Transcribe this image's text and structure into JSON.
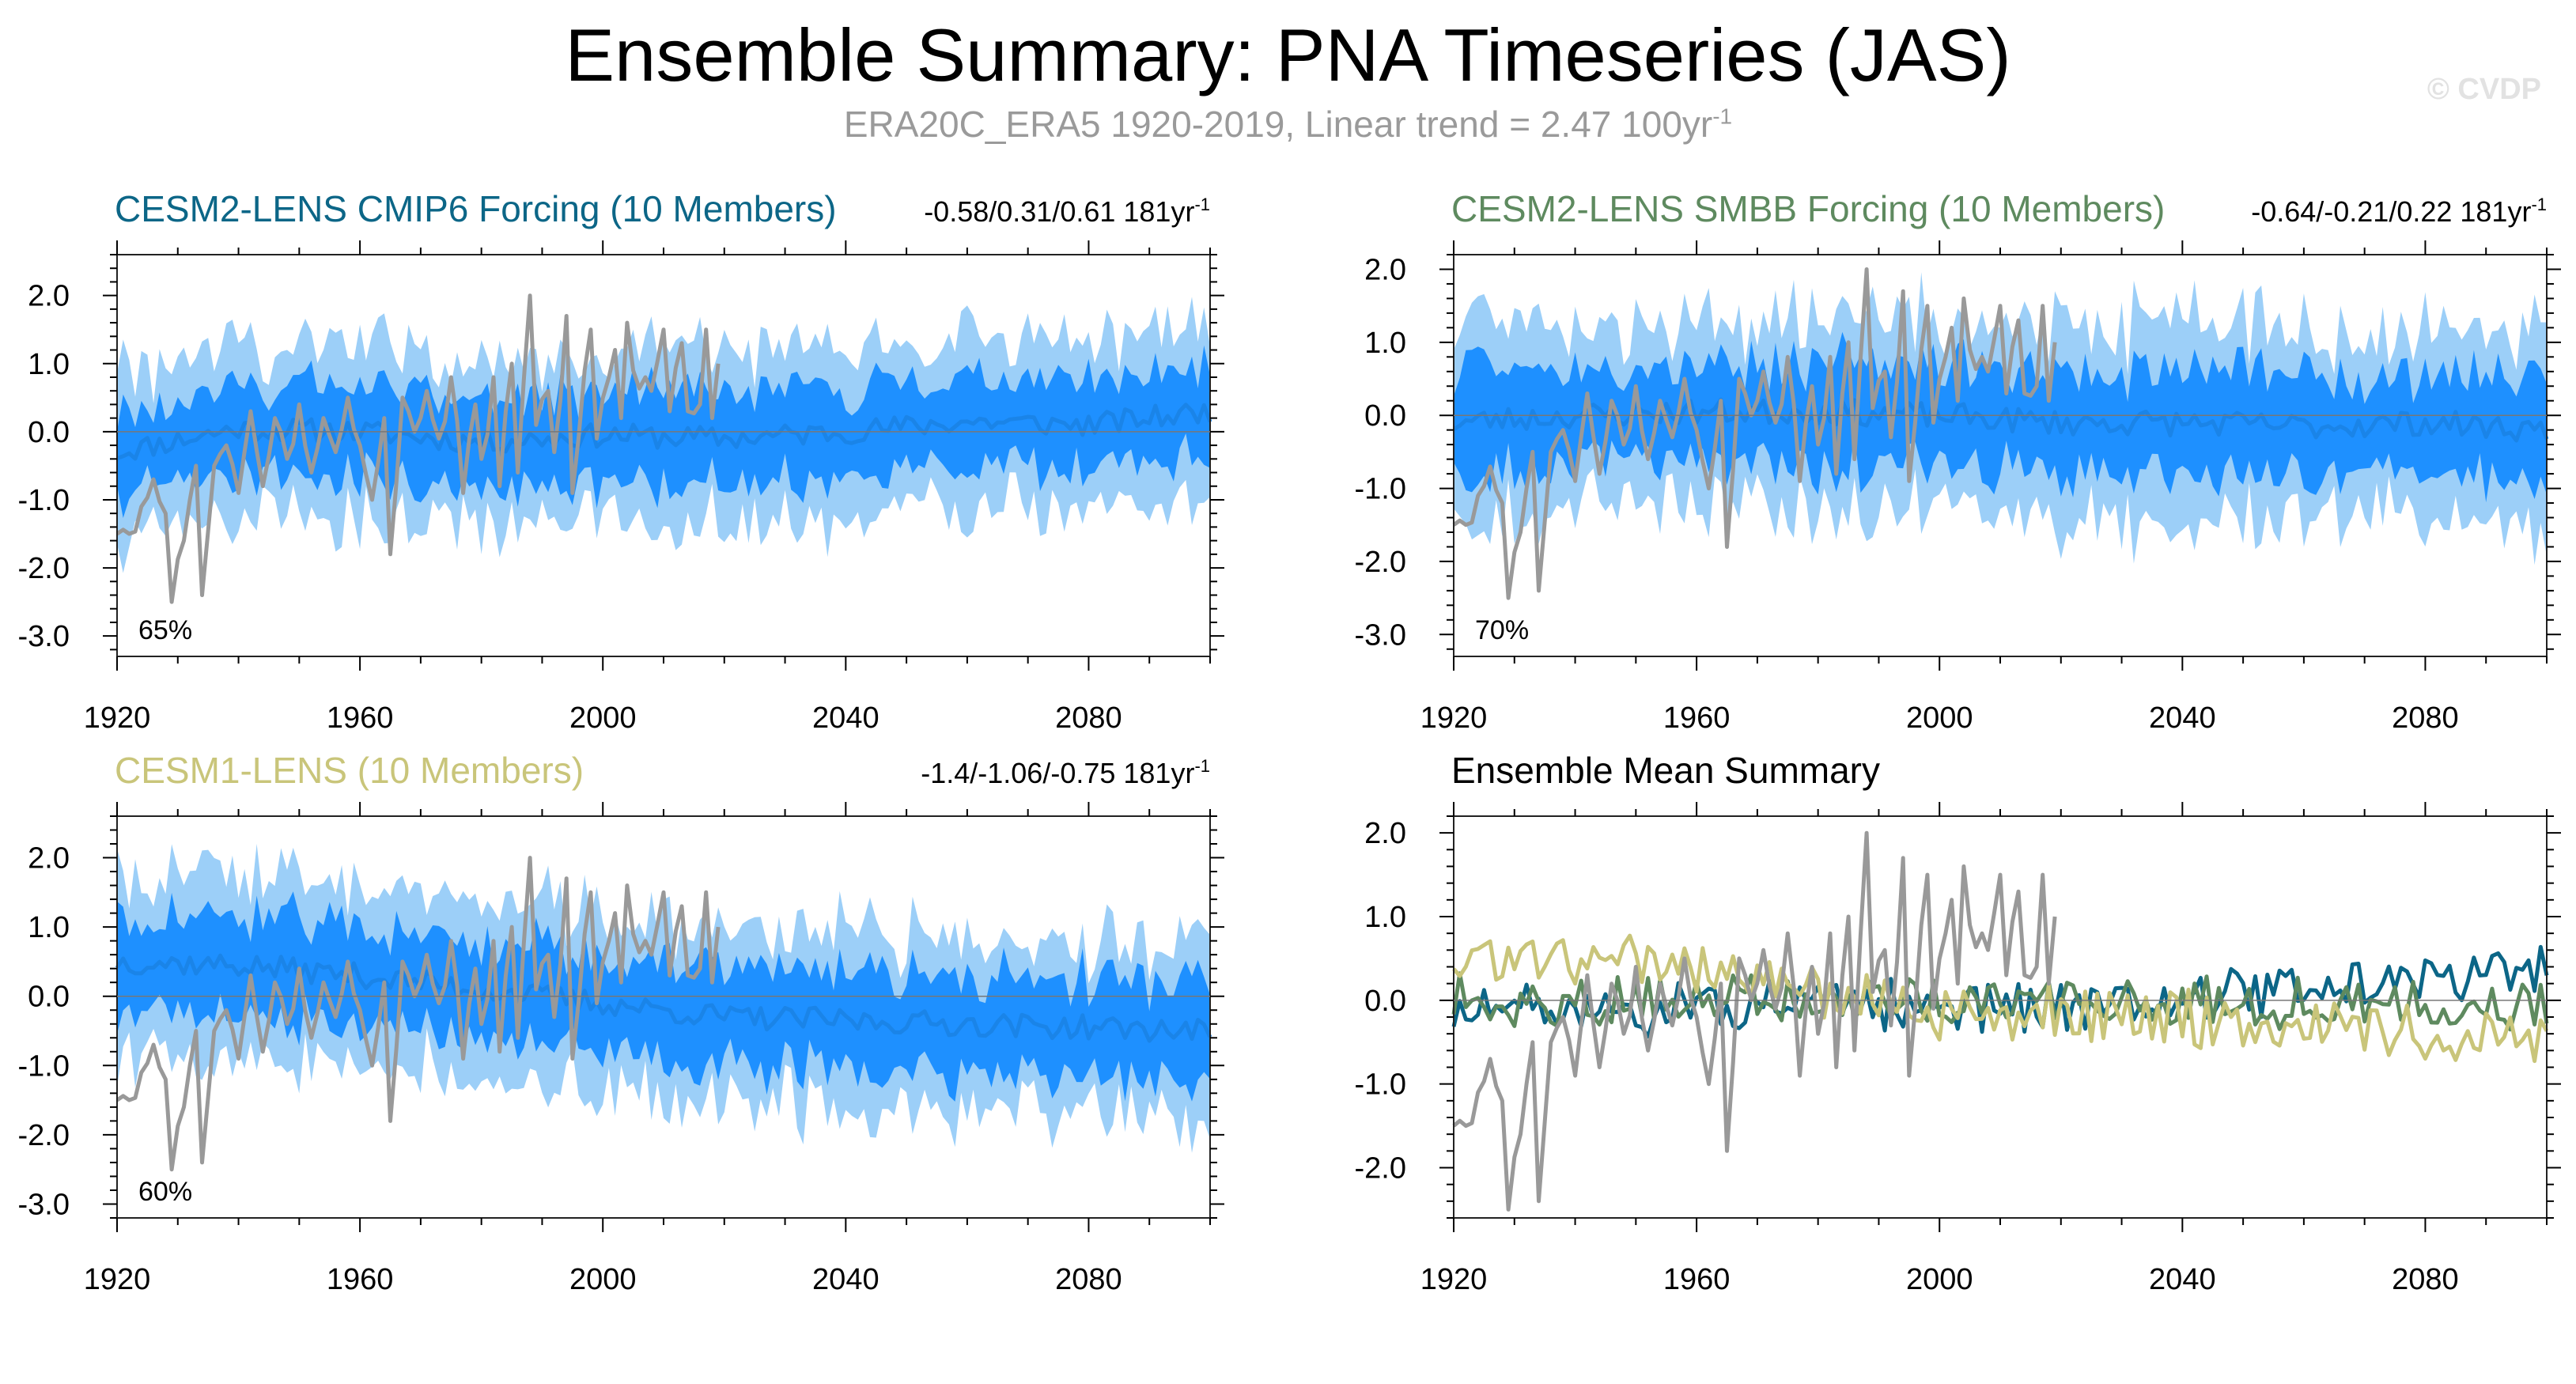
{
  "title": "Ensemble Summary: PNA Timeseries (JAS)",
  "subtitle_text": "ERA20C_ERA5 1920-2019, Linear trend = 2.47 100yr",
  "subtitle_exp": "-1",
  "credit": "© CVDP",
  "colors": {
    "inner_band": "#1e90ff",
    "outer_band": "#9ccff8",
    "ens_mean": "#1a84e8",
    "obs": "#999999",
    "cesm2_cmip6": "#0c6687",
    "cesm2_smbb": "#5e8a5f",
    "cesm1": "#c9c57a"
  },
  "chart_data": [
    {
      "id": "p1",
      "type": "area",
      "title": "CESM2-LENS CMIP6 Forcing (10 Members)",
      "title_color": "#0c6687",
      "stats": "-0.58/0.31/0.61 181yr",
      "stats_exp": "-1",
      "percent": "65%",
      "xlim": [
        1920,
        2100
      ],
      "ylim": [
        -3.3,
        2.6
      ],
      "xticks": [
        "1920",
        "1960",
        "2000",
        "2040",
        "2080"
      ],
      "yticks": [
        "2.0",
        "1.0",
        "0.0",
        "-1.0",
        "-2.0",
        "-3.0"
      ],
      "ytick_values": [
        2,
        1,
        0,
        -1,
        -2,
        -3
      ],
      "ens_mean_key": [
        [
          1920,
          -0.3
        ],
        [
          1940,
          0.05
        ],
        [
          1960,
          0.0
        ],
        [
          1980,
          -0.15
        ],
        [
          2000,
          -0.05
        ],
        [
          2020,
          -0.1
        ],
        [
          2040,
          0.0
        ],
        [
          2060,
          0.15
        ],
        [
          2080,
          0.1
        ],
        [
          2100,
          0.3
        ]
      ],
      "inner_halfwidth": 0.65,
      "outer_halfwidth": 1.2,
      "trend": 0.0,
      "show_obs": true,
      "seed": 11
    },
    {
      "id": "p2",
      "type": "area",
      "title": "CESM2-LENS SMBB Forcing (10 Members)",
      "title_color": "#5e8a5f",
      "stats": "-0.64/-0.21/0.22 181yr",
      "stats_exp": "-1",
      "percent": "70%",
      "xlim": [
        1920,
        2100
      ],
      "ylim": [
        -3.3,
        2.2
      ],
      "xticks": [
        "1920",
        "1960",
        "2000",
        "2040",
        "2080"
      ],
      "yticks": [
        "2.0",
        "1.0",
        "0.0",
        "-1.0",
        "-2.0",
        "-3.0"
      ],
      "ytick_values": [
        2,
        1,
        0,
        -1,
        -2,
        -3
      ],
      "ens_mean_key": [
        [
          1920,
          -0.1
        ],
        [
          1940,
          0.0
        ],
        [
          1960,
          0.05
        ],
        [
          1980,
          0.05
        ],
        [
          2000,
          0.0
        ],
        [
          2020,
          -0.1
        ],
        [
          2040,
          -0.1
        ],
        [
          2060,
          -0.15
        ],
        [
          2080,
          -0.1
        ],
        [
          2100,
          -0.2
        ]
      ],
      "inner_halfwidth": 0.7,
      "outer_halfwidth": 1.3,
      "trend": 0.0,
      "show_obs": true,
      "seed": 23
    },
    {
      "id": "p3",
      "type": "area",
      "title": "CESM1-LENS (10 Members)",
      "title_color": "#c9c57a",
      "stats": "-1.4/-1.06/-0.75 181yr",
      "stats_exp": "-1",
      "percent": "60%",
      "xlim": [
        1920,
        2100
      ],
      "ylim": [
        -3.2,
        2.6
      ],
      "xticks": [
        "1920",
        "1960",
        "2000",
        "2040",
        "2080"
      ],
      "yticks": [
        "2.0",
        "1.0",
        "0.0",
        "-1.0",
        "-2.0",
        "-3.0"
      ],
      "ytick_values": [
        2,
        1,
        0,
        -1,
        -2,
        -3
      ],
      "ens_mean_key": [
        [
          1920,
          0.5
        ],
        [
          1940,
          0.45
        ],
        [
          1960,
          0.3
        ],
        [
          1980,
          0.1
        ],
        [
          2000,
          -0.1
        ],
        [
          2020,
          -0.3
        ],
        [
          2040,
          -0.35
        ],
        [
          2060,
          -0.4
        ],
        [
          2080,
          -0.45
        ],
        [
          2100,
          -0.5
        ]
      ],
      "inner_halfwidth": 0.7,
      "outer_halfwidth": 1.25,
      "trend": 0.0,
      "show_obs": true,
      "seed": 37
    },
    {
      "id": "p4",
      "type": "line",
      "title": "Ensemble Mean Summary",
      "title_color": "#000000",
      "xlim": [
        1920,
        2100
      ],
      "ylim": [
        -2.6,
        2.2
      ],
      "xticks": [
        "1920",
        "1960",
        "2000",
        "2040",
        "2080"
      ],
      "yticks": [
        "2.0",
        "1.0",
        "0.0",
        "-1.0",
        "-2.0"
      ],
      "ytick_values": [
        2,
        1,
        0,
        -1,
        -2
      ],
      "series": [
        {
          "name": "CESM2-LENS CMIP6 Forcing",
          "color": "#0c6687",
          "seed": 51,
          "amp": 0.22,
          "trend_key": [
            [
              1920,
              -0.15
            ],
            [
              2020,
              -0.05
            ],
            [
              2100,
              0.35
            ]
          ]
        },
        {
          "name": "CESM2-LENS SMBB Forcing",
          "color": "#5e8a5f",
          "seed": 63,
          "amp": 0.22,
          "trend_key": [
            [
              1920,
              0.0
            ],
            [
              2020,
              0.0
            ],
            [
              2100,
              -0.05
            ]
          ]
        },
        {
          "name": "CESM1-LENS",
          "color": "#c9c57a",
          "seed": 75,
          "amp": 0.25,
          "trend_key": [
            [
              1920,
              0.5
            ],
            [
              1960,
              0.4
            ],
            [
              2000,
              -0.1
            ],
            [
              2100,
              -0.45
            ]
          ]
        }
      ],
      "show_obs": true
    }
  ],
  "observations": {
    "name": "ERA20C_ERA5",
    "years": [
      1920,
      2019
    ],
    "key": [
      [
        1920,
        -1.5
      ],
      [
        1922,
        -1.5
      ],
      [
        1924,
        -1.1
      ],
      [
        1926,
        -0.7
      ],
      [
        1928,
        -1.2
      ],
      [
        1929,
        -2.5
      ],
      [
        1931,
        -1.6
      ],
      [
        1933,
        -0.5
      ],
      [
        1934,
        -2.4
      ],
      [
        1936,
        -0.5
      ],
      [
        1938,
        -0.2
      ],
      [
        1940,
        -0.9
      ],
      [
        1942,
        0.3
      ],
      [
        1944,
        -0.8
      ],
      [
        1946,
        0.2
      ],
      [
        1948,
        -0.4
      ],
      [
        1950,
        0.4
      ],
      [
        1952,
        -0.6
      ],
      [
        1954,
        0.2
      ],
      [
        1956,
        -0.3
      ],
      [
        1958,
        0.5
      ],
      [
        1960,
        -0.2
      ],
      [
        1962,
        -1.0
      ],
      [
        1964,
        0.2
      ],
      [
        1965,
        -1.8
      ],
      [
        1967,
        0.5
      ],
      [
        1969,
        0.0
      ],
      [
        1971,
        0.6
      ],
      [
        1973,
        -0.1
      ],
      [
        1975,
        0.8
      ],
      [
        1977,
        -0.9
      ],
      [
        1979,
        0.4
      ],
      [
        1980,
        -0.4
      ],
      [
        1982,
        0.8
      ],
      [
        1983,
        -0.8
      ],
      [
        1985,
        1.0
      ],
      [
        1986,
        -0.6
      ],
      [
        1988,
        2.0
      ],
      [
        1989,
        0.1
      ],
      [
        1991,
        0.6
      ],
      [
        1992,
        -0.3
      ],
      [
        1994,
        1.7
      ],
      [
        1995,
        -0.9
      ],
      [
        1997,
        0.9
      ],
      [
        1998,
        1.5
      ],
      [
        1999,
        -0.1
      ],
      [
        2001,
        0.8
      ],
      [
        2002,
        1.2
      ],
      [
        2003,
        0.2
      ],
      [
        2004,
        1.6
      ],
      [
        2005,
        0.9
      ],
      [
        2007,
        0.8
      ],
      [
        2008,
        0.6
      ],
      [
        2010,
        1.5
      ],
      [
        2011,
        0.3
      ],
      [
        2013,
        1.3
      ],
      [
        2014,
        0.3
      ],
      [
        2016,
        0.4
      ],
      [
        2017,
        1.5
      ],
      [
        2018,
        0.2
      ],
      [
        2019,
        1.0
      ]
    ]
  }
}
